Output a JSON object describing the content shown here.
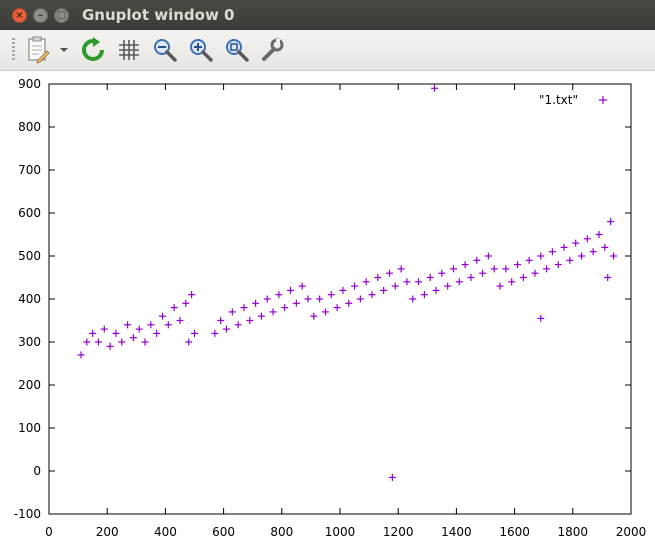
{
  "window": {
    "title": "Gnuplot window 0",
    "close_glyph": "×",
    "minimize_glyph": "–",
    "maximize_glyph": "□"
  },
  "toolbar": {
    "items": [
      {
        "name": "copy-to-clipboard",
        "icon": "clipboard-icon"
      },
      {
        "name": "menu-dropdown",
        "icon": "chevron-down-icon"
      },
      {
        "name": "replot",
        "icon": "refresh-icon"
      },
      {
        "name": "toggle-grid",
        "icon": "grid-icon"
      },
      {
        "name": "previous-zoom",
        "icon": "zoom-out-icon"
      },
      {
        "name": "next-zoom",
        "icon": "zoom-in-icon"
      },
      {
        "name": "autoscale",
        "icon": "zoom-fit-icon"
      },
      {
        "name": "settings",
        "icon": "wrench-icon"
      }
    ]
  },
  "colors": {
    "series": "#9400d3",
    "refresh": "#2e9a2a",
    "magnifier": "#3b6fb6"
  },
  "chart_data": {
    "type": "scatter",
    "xlim": [
      0,
      2000
    ],
    "ylim": [
      -100,
      900
    ],
    "xticks": [
      0,
      200,
      400,
      600,
      800,
      1000,
      1200,
      1400,
      1600,
      1800,
      2000
    ],
    "yticks": [
      -100,
      0,
      100,
      200,
      300,
      400,
      500,
      600,
      700,
      800,
      900
    ],
    "grid": false,
    "legend_position": "top-right",
    "series": [
      {
        "name": "\"1.txt\"",
        "marker": "plus",
        "points": [
          [
            1325,
            890
          ],
          [
            1690,
            355
          ],
          [
            1180,
            -15
          ],
          [
            110,
            270
          ],
          [
            130,
            300
          ],
          [
            150,
            320
          ],
          [
            170,
            300
          ],
          [
            190,
            330
          ],
          [
            210,
            290
          ],
          [
            230,
            320
          ],
          [
            250,
            300
          ],
          [
            270,
            340
          ],
          [
            290,
            310
          ],
          [
            310,
            330
          ],
          [
            330,
            300
          ],
          [
            350,
            340
          ],
          [
            370,
            320
          ],
          [
            390,
            360
          ],
          [
            410,
            340
          ],
          [
            430,
            380
          ],
          [
            450,
            350
          ],
          [
            470,
            390
          ],
          [
            490,
            410
          ],
          [
            480,
            300
          ],
          [
            500,
            320
          ],
          [
            570,
            320
          ],
          [
            590,
            350
          ],
          [
            610,
            330
          ],
          [
            630,
            370
          ],
          [
            650,
            340
          ],
          [
            670,
            380
          ],
          [
            690,
            350
          ],
          [
            710,
            390
          ],
          [
            730,
            360
          ],
          [
            750,
            400
          ],
          [
            770,
            370
          ],
          [
            790,
            410
          ],
          [
            810,
            380
          ],
          [
            830,
            420
          ],
          [
            850,
            390
          ],
          [
            870,
            430
          ],
          [
            890,
            400
          ],
          [
            910,
            360
          ],
          [
            930,
            400
          ],
          [
            950,
            370
          ],
          [
            970,
            410
          ],
          [
            990,
            380
          ],
          [
            1010,
            420
          ],
          [
            1030,
            390
          ],
          [
            1050,
            430
          ],
          [
            1070,
            400
          ],
          [
            1090,
            440
          ],
          [
            1110,
            410
          ],
          [
            1130,
            450
          ],
          [
            1150,
            420
          ],
          [
            1170,
            460
          ],
          [
            1190,
            430
          ],
          [
            1210,
            470
          ],
          [
            1230,
            440
          ],
          [
            1250,
            400
          ],
          [
            1270,
            440
          ],
          [
            1290,
            410
          ],
          [
            1310,
            450
          ],
          [
            1330,
            420
          ],
          [
            1350,
            460
          ],
          [
            1370,
            430
          ],
          [
            1390,
            470
          ],
          [
            1410,
            440
          ],
          [
            1430,
            480
          ],
          [
            1450,
            450
          ],
          [
            1470,
            490
          ],
          [
            1490,
            460
          ],
          [
            1510,
            500
          ],
          [
            1530,
            470
          ],
          [
            1550,
            430
          ],
          [
            1570,
            470
          ],
          [
            1590,
            440
          ],
          [
            1610,
            480
          ],
          [
            1630,
            450
          ],
          [
            1650,
            490
          ],
          [
            1670,
            460
          ],
          [
            1690,
            500
          ],
          [
            1710,
            470
          ],
          [
            1730,
            510
          ],
          [
            1750,
            480
          ],
          [
            1770,
            520
          ],
          [
            1790,
            490
          ],
          [
            1810,
            530
          ],
          [
            1830,
            500
          ],
          [
            1850,
            540
          ],
          [
            1870,
            510
          ],
          [
            1890,
            550
          ],
          [
            1910,
            520
          ],
          [
            1930,
            580
          ],
          [
            1920,
            450
          ],
          [
            1940,
            500
          ]
        ]
      }
    ]
  }
}
